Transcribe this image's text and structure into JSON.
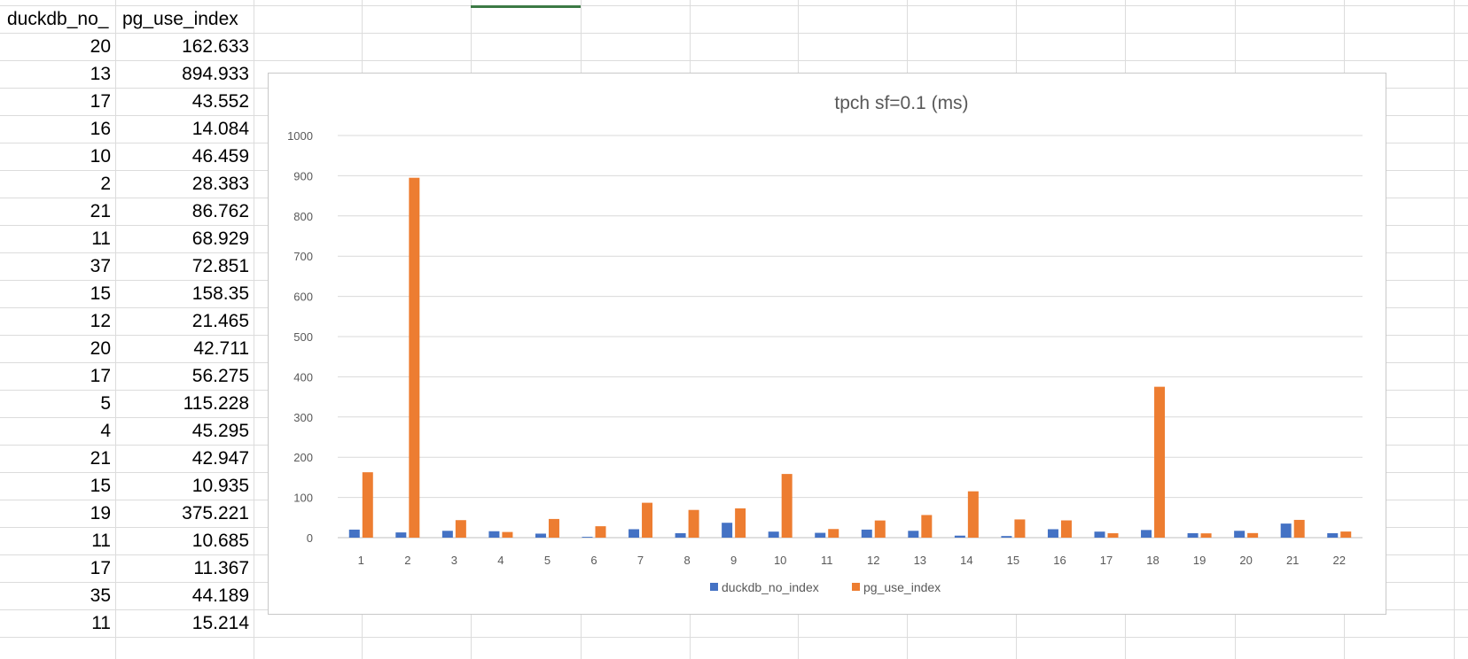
{
  "sheet": {
    "headers": [
      "duckdb_no_",
      "pg_use_index"
    ],
    "rows": [
      [
        "20",
        "162.633"
      ],
      [
        "13",
        "894.933"
      ],
      [
        "17",
        "43.552"
      ],
      [
        "16",
        "14.084"
      ],
      [
        "10",
        "46.459"
      ],
      [
        "2",
        "28.383"
      ],
      [
        "21",
        "86.762"
      ],
      [
        "11",
        "68.929"
      ],
      [
        "37",
        "72.851"
      ],
      [
        "15",
        "158.35"
      ],
      [
        "12",
        "21.465"
      ],
      [
        "20",
        "42.711"
      ],
      [
        "17",
        "56.275"
      ],
      [
        "5",
        "115.228"
      ],
      [
        "4",
        "45.295"
      ],
      [
        "21",
        "42.947"
      ],
      [
        "15",
        "10.935"
      ],
      [
        "19",
        "375.221"
      ],
      [
        "11",
        "10.685"
      ],
      [
        "17",
        "11.367"
      ],
      [
        "35",
        "44.189"
      ],
      [
        "11",
        "15.214"
      ]
    ]
  },
  "chart_data": {
    "type": "bar",
    "title": "tpch sf=0.1 (ms)",
    "xlabel": "",
    "ylabel": "",
    "ylim": [
      0,
      1000
    ],
    "yticks": [
      0,
      100,
      200,
      300,
      400,
      500,
      600,
      700,
      800,
      900,
      1000
    ],
    "categories": [
      "1",
      "2",
      "3",
      "4",
      "5",
      "6",
      "7",
      "8",
      "9",
      "10",
      "11",
      "12",
      "13",
      "14",
      "15",
      "16",
      "17",
      "18",
      "19",
      "20",
      "21",
      "22"
    ],
    "series": [
      {
        "name": "duckdb_no_index",
        "color": "#4472c4",
        "values": [
          20,
          13,
          17,
          16,
          10,
          2,
          21,
          11,
          37,
          15,
          12,
          20,
          17,
          5,
          4,
          21,
          15,
          19,
          11,
          17,
          35,
          11
        ]
      },
      {
        "name": "pg_use_index",
        "color": "#ed7d31",
        "values": [
          162.633,
          894.933,
          43.552,
          14.084,
          46.459,
          28.383,
          86.762,
          68.929,
          72.851,
          158.35,
          21.465,
          42.711,
          56.275,
          115.228,
          45.295,
          42.947,
          10.935,
          375.221,
          10.685,
          11.367,
          44.189,
          15.214
        ]
      }
    ],
    "grid": true,
    "legend": "bottom"
  }
}
